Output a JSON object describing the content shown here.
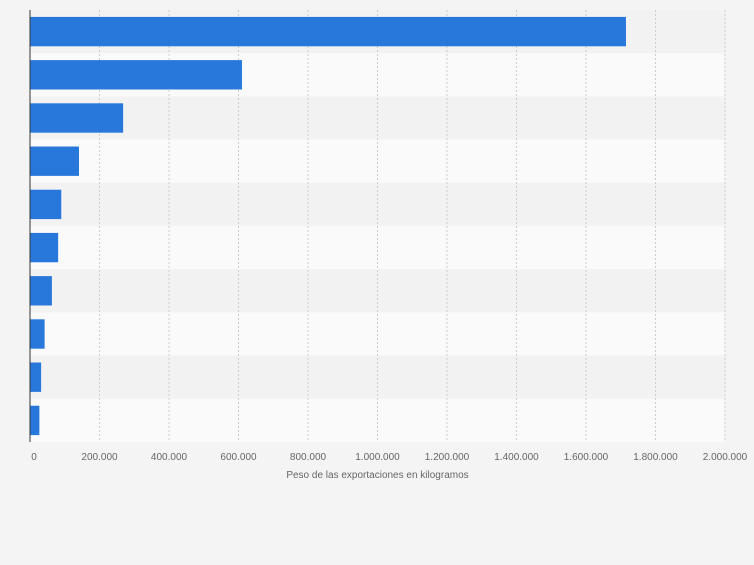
{
  "chart_data": {
    "type": "bar",
    "orientation": "horizontal",
    "categories": [
      "",
      "",
      "",
      "",
      "",
      "",
      "",
      "",
      "",
      ""
    ],
    "values": [
      1715000,
      610000,
      268000,
      141000,
      90000,
      81000,
      63000,
      42000,
      32000,
      27000
    ],
    "xlabel": "Peso de las exportaciones en kilogramos",
    "xlim": [
      0,
      2000000
    ],
    "x_ticks": [
      0,
      200000,
      400000,
      600000,
      800000,
      1000000,
      1200000,
      1400000,
      1600000,
      1800000,
      2000000
    ],
    "x_tick_labels": [
      "0",
      "200.000",
      "400.000",
      "600.000",
      "800.000",
      "1.000.000",
      "1.200.000",
      "1.400.000",
      "1.600.000",
      "1.800.000",
      "2.000.000"
    ],
    "grid": "vertical dashed",
    "legend": "none",
    "colors": {
      "bar": "#2878dc",
      "band_dark": "#f2f2f2",
      "band_light": "#fafafa",
      "grid": "#cccccc",
      "axis": "#333333",
      "text": "#666666",
      "background": "#f4f4f4"
    }
  }
}
